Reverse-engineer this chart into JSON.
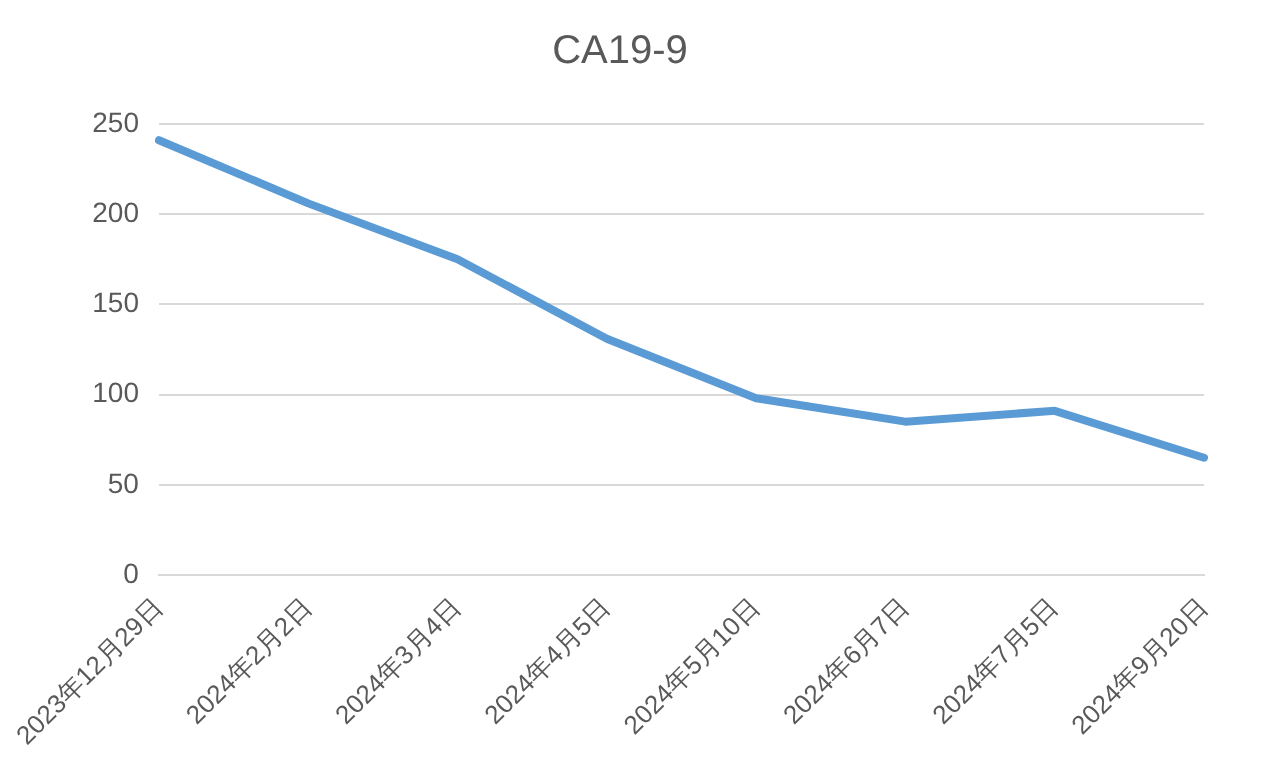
{
  "chart_data": {
    "type": "line",
    "title": "CA19-9",
    "categories": [
      "2023年12月29日",
      "2024年2月2日",
      "2024年3月4日",
      "2024年4月5日",
      "2024年5月10日",
      "2024年6月7日",
      "2024年7月5日",
      "2024年9月20日"
    ],
    "series": [
      {
        "color": "#5b9bd5",
        "values": [
          241,
          206,
          175,
          131,
          98,
          85,
          91,
          65
        ]
      }
    ],
    "ylim": [
      0,
      250
    ],
    "yticks": [
      0,
      50,
      100,
      150,
      200,
      250
    ],
    "grid": "y",
    "legend": false,
    "marker": "none",
    "line_style": "solid"
  }
}
